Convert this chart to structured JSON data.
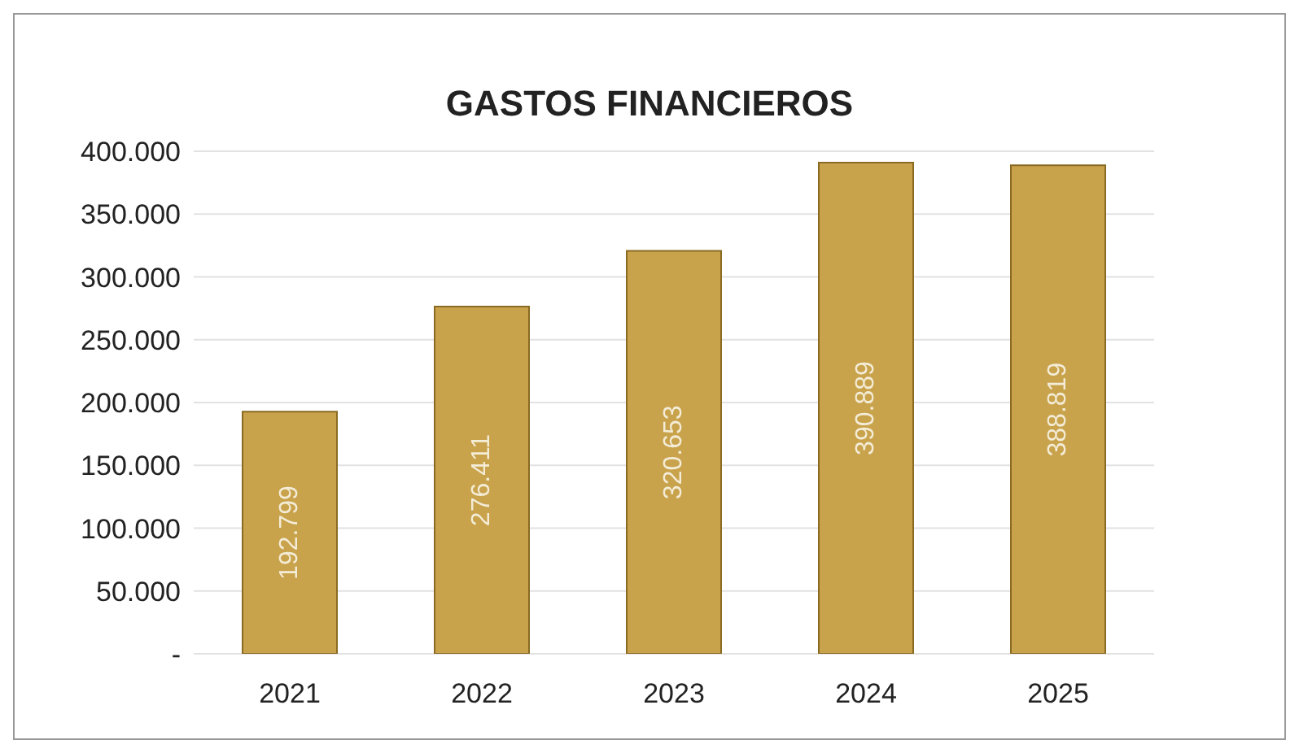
{
  "chart_data": {
    "type": "bar",
    "title": "GASTOS FINANCIEROS",
    "categories": [
      "2021",
      "2022",
      "2023",
      "2024",
      "2025"
    ],
    "values": [
      192799,
      276411,
      320653,
      390889,
      388819
    ],
    "value_labels": [
      "192.799",
      "276.411",
      "320.653",
      "390.889",
      "388.819"
    ],
    "color": "#c9a24c",
    "ylim": [
      0,
      400000
    ],
    "yticks": [
      {
        "value": 0,
        "label": "-"
      },
      {
        "value": 50000,
        "label": "50.000"
      },
      {
        "value": 100000,
        "label": "100.000"
      },
      {
        "value": 150000,
        "label": "150.000"
      },
      {
        "value": 200000,
        "label": "200.000"
      },
      {
        "value": 250000,
        "label": "250.000"
      },
      {
        "value": 300000,
        "label": "300.000"
      },
      {
        "value": 350000,
        "label": "350.000"
      },
      {
        "value": 400000,
        "label": "400.000"
      }
    ],
    "grid": "y",
    "legend": false
  }
}
